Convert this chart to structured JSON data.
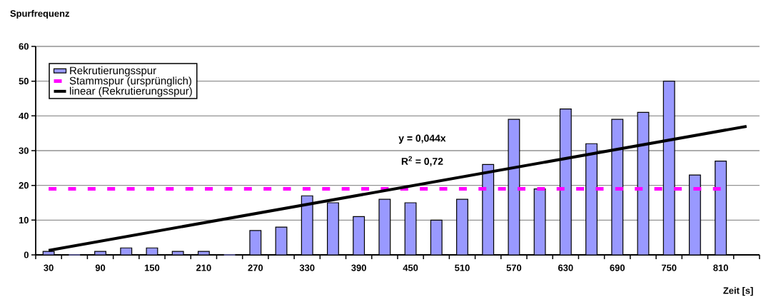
{
  "chart_data": {
    "type": "bar",
    "ylabel": "Spurfrequenz",
    "xlabel": "Zeit [s]",
    "x": [
      30,
      60,
      90,
      120,
      150,
      180,
      210,
      240,
      270,
      300,
      330,
      360,
      390,
      420,
      450,
      480,
      510,
      540,
      570,
      600,
      630,
      660,
      690,
      720,
      750,
      780,
      810
    ],
    "xlim": [
      15,
      855
    ],
    "xticks": [
      30,
      90,
      150,
      210,
      270,
      330,
      390,
      450,
      510,
      570,
      630,
      690,
      750,
      810,
      {
        "value": 15,
        "label": null
      },
      {
        "value": 45,
        "label": null
      },
      {
        "value": 75,
        "label": null
      },
      {
        "value": 105,
        "label": null
      },
      {
        "value": 135,
        "label": null
      },
      {
        "value": 165,
        "label": null
      },
      {
        "value": 195,
        "label": null
      },
      {
        "value": 225,
        "label": null
      },
      {
        "value": 255,
        "label": null
      },
      {
        "value": 285,
        "label": null
      },
      {
        "value": 315,
        "label": null
      },
      {
        "value": 345,
        "label": null
      },
      {
        "value": 375,
        "label": null
      },
      {
        "value": 405,
        "label": null
      },
      {
        "value": 435,
        "label": null
      },
      {
        "value": 465,
        "label": null
      },
      {
        "value": 495,
        "label": null
      },
      {
        "value": 525,
        "label": null
      },
      {
        "value": 555,
        "label": null
      },
      {
        "value": 585,
        "label": null
      },
      {
        "value": 615,
        "label": null
      },
      {
        "value": 645,
        "label": null
      },
      {
        "value": 675,
        "label": null
      },
      {
        "value": 705,
        "label": null
      },
      {
        "value": 735,
        "label": null
      },
      {
        "value": 765,
        "label": null
      },
      {
        "value": 795,
        "label": null
      },
      {
        "value": 825,
        "label": null
      },
      {
        "value": 855,
        "label": null
      }
    ],
    "ylim": [
      0,
      60
    ],
    "yticks": [
      0,
      10,
      20,
      30,
      40,
      50,
      60
    ],
    "grid": "y",
    "legend": "top left",
    "annotations": [
      "y = 0,044x",
      "R$^{2}$ = 0,72"
    ],
    "series": [
      {
        "name": "Rekrutierungsspur",
        "color": "#9999ff",
        "values": [
          1,
          0,
          1,
          2,
          2,
          1,
          1,
          0,
          7,
          8,
          17,
          15,
          11,
          16,
          15,
          10,
          16,
          26,
          39,
          19,
          42,
          32,
          39,
          41,
          50,
          23,
          27
        ]
      },
      {
        "name": "Stammspur (ursprünglich)",
        "type": "line",
        "line_style": "dashed",
        "color": "#ff00ff",
        "x": [
          30,
          810
        ],
        "values": [
          19,
          19
        ]
      },
      {
        "name": "linear (Rekrutierungsspur)",
        "type": "line",
        "line_style": "solid",
        "color": "#000000",
        "x": [
          30,
          840
        ],
        "values": [
          1.3,
          37
        ]
      }
    ]
  }
}
